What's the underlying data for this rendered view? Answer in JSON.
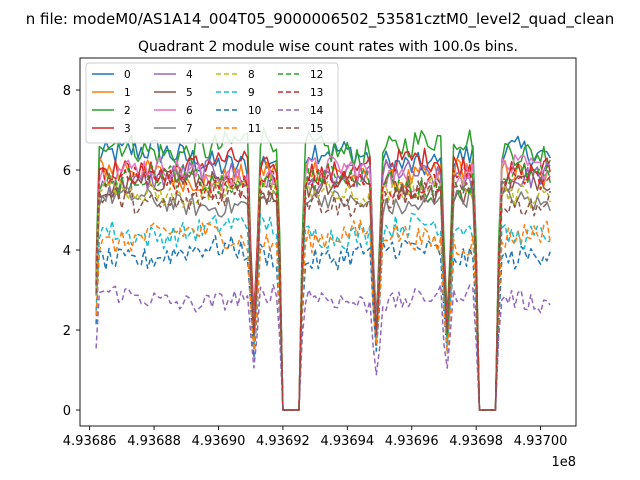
{
  "figure": {
    "suptitle": "n file: modeM0/AS1A14_004T05_9000006502_53581cztM0_level2_quad_clean"
  },
  "chart_data": {
    "type": "line",
    "title": "Quadrant 2 module wise count rates with 100.0s bins.",
    "xlabel": "",
    "ylabel": "",
    "x_offset_label": "1e8",
    "xlim": [
      4.936857,
      4.937011
    ],
    "ylim": [
      -0.4,
      8.8
    ],
    "x_ticks": [
      4.93686,
      4.93688,
      4.9369,
      4.93692,
      4.93694,
      4.93696,
      4.93698,
      4.937
    ],
    "x_tick_labels": [
      "4.93686",
      "4.93688",
      "4.93690",
      "4.93692",
      "4.93694",
      "4.93696",
      "4.93698",
      "4.93700"
    ],
    "y_ticks": [
      0,
      2,
      4,
      6,
      8
    ],
    "y_tick_labels": [
      "0",
      "2",
      "4",
      "6",
      "8"
    ],
    "grid": false,
    "legend_position": "top-left",
    "legend_columns": 4,
    "x_start": 4.936862,
    "x_step": 1e-06,
    "gaps": [
      [
        4.93692,
        4.936925
      ],
      [
        4.936981,
        4.936986
      ],
      [
        4.937004,
        4.937011
      ]
    ],
    "segments": [
      {
        "from": 4.936862,
        "to": 4.936919
      },
      {
        "from": 4.936926,
        "to": 4.93698
      },
      {
        "from": 4.936987,
        "to": 4.937003
      }
    ],
    "dips": [
      4.93686,
      4.936911,
      4.93692,
      4.936925,
      4.936949,
      4.936971,
      4.936981,
      4.936986
    ],
    "series": [
      {
        "name": "0",
        "color": "#1f77b4",
        "dash": "solid",
        "level": 6.3,
        "spread": 0.35
      },
      {
        "name": "1",
        "color": "#ff7f0e",
        "dash": "solid",
        "level": 5.9,
        "spread": 0.3
      },
      {
        "name": "2",
        "color": "#2ca02c",
        "dash": "solid",
        "level": 6.6,
        "spread": 0.35
      },
      {
        "name": "3",
        "color": "#d62728",
        "dash": "solid",
        "level": 6.1,
        "spread": 0.3
      },
      {
        "name": "4",
        "color": "#9467bd",
        "dash": "solid",
        "level": 5.8,
        "spread": 0.3
      },
      {
        "name": "5",
        "color": "#8c564b",
        "dash": "solid",
        "level": 5.6,
        "spread": 0.3
      },
      {
        "name": "6",
        "color": "#e377c2",
        "dash": "solid",
        "level": 5.9,
        "spread": 0.3
      },
      {
        "name": "7",
        "color": "#7f7f7f",
        "dash": "solid",
        "level": 5.2,
        "spread": 0.25
      },
      {
        "name": "8",
        "color": "#bcbd22",
        "dash": "dashed",
        "level": 5.5,
        "spread": 0.3
      },
      {
        "name": "9",
        "color": "#17becf",
        "dash": "dashed",
        "level": 4.5,
        "spread": 0.3
      },
      {
        "name": "10",
        "color": "#1f77b4",
        "dash": "dashed",
        "level": 3.9,
        "spread": 0.3
      },
      {
        "name": "11",
        "color": "#ff7f0e",
        "dash": "dashed",
        "level": 4.3,
        "spread": 0.3
      },
      {
        "name": "12",
        "color": "#2ca02c",
        "dash": "dashed",
        "level": 5.7,
        "spread": 0.3
      },
      {
        "name": "13",
        "color": "#d62728",
        "dash": "dashed",
        "level": 5.7,
        "spread": 0.3
      },
      {
        "name": "14",
        "color": "#9467bd",
        "dash": "dashed",
        "level": 2.8,
        "spread": 0.25
      },
      {
        "name": "15",
        "color": "#8c564b",
        "dash": "dashed",
        "level": 5.3,
        "spread": 0.3
      }
    ]
  }
}
